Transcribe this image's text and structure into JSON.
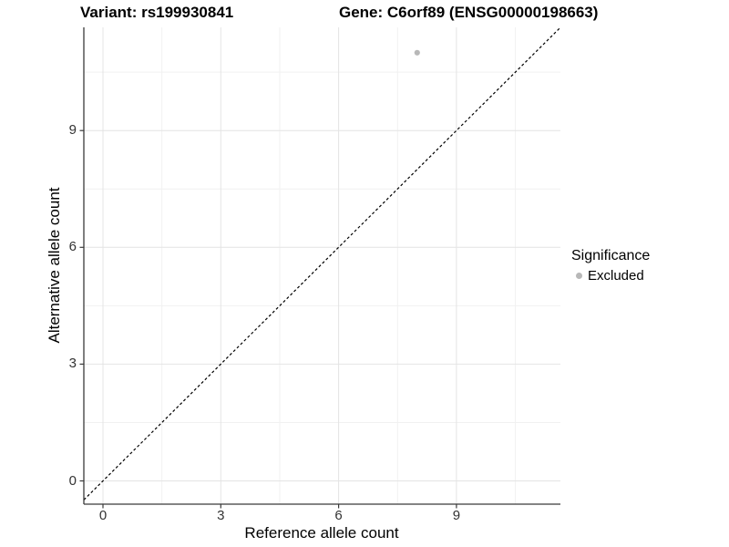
{
  "header": {
    "variant_title": "Variant: rs199930841",
    "gene_title": "Gene: C6orf89 (ENSG00000198663)"
  },
  "legend": {
    "title": "Significance",
    "items": [
      {
        "label": "Excluded",
        "color": "#b8b8b8"
      }
    ]
  },
  "chart_data": {
    "type": "scatter",
    "title": "Variant: rs199930841   Gene: C6orf89 (ENSG00000198663)",
    "xlabel": "Reference allele count",
    "ylabel": "Alternative allele count",
    "x_ticks": [
      0,
      3,
      6,
      9
    ],
    "y_ticks": [
      0,
      3,
      6,
      9
    ],
    "xlim": [
      -0.49,
      11.65
    ],
    "ylim": [
      -0.6,
      11.64
    ],
    "grid": true,
    "legend_position": "right-middle",
    "series": [
      {
        "name": "Excluded",
        "color": "#b8b8b8",
        "points": [
          {
            "x": 8,
            "y": 11
          }
        ]
      }
    ],
    "reference_line": {
      "type": "identity y=x",
      "style": "dashed",
      "color": "#000000"
    }
  },
  "colors": {
    "background": "#ffffff",
    "grid_major": "#e4e4e4",
    "grid_minor": "#f1f1f1",
    "axis_line": "#3a3a3a",
    "tick_text": "#333333",
    "point": "#b8b8b8"
  }
}
